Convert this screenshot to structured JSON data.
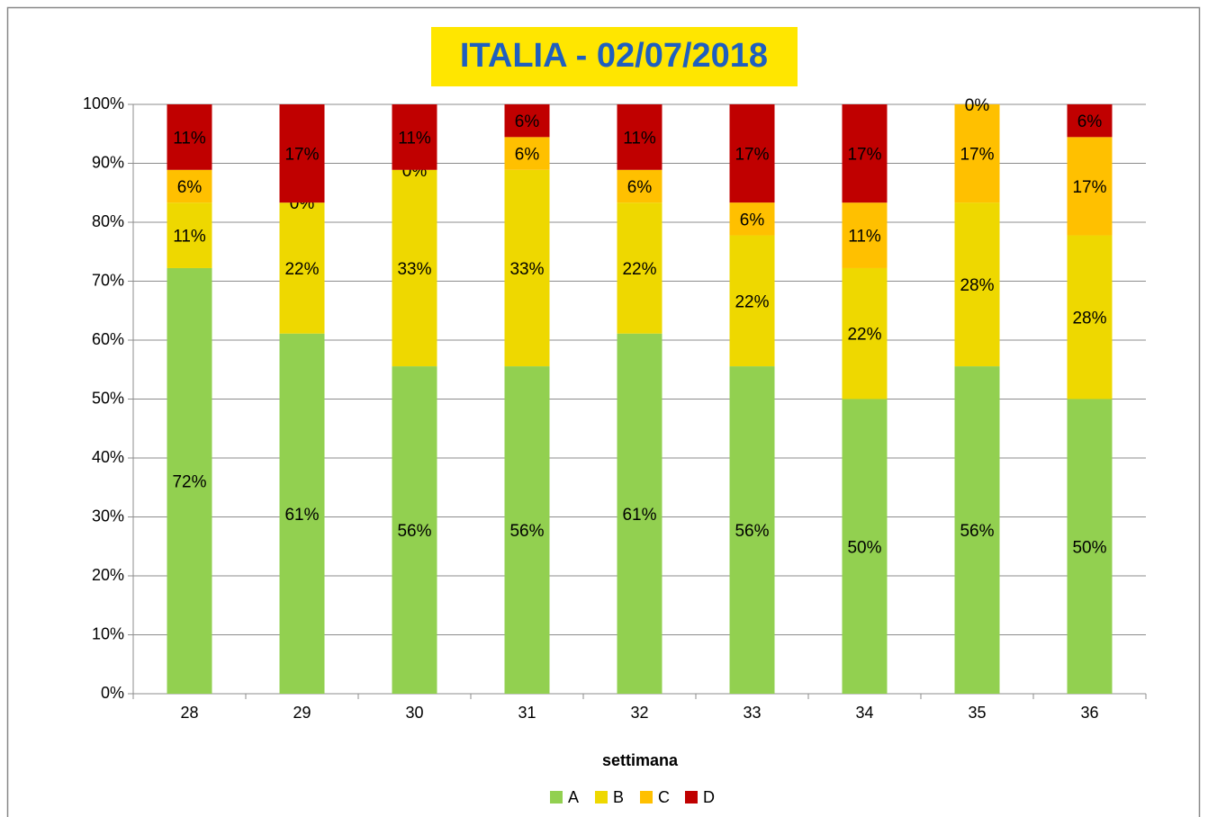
{
  "chart_data": {
    "type": "stacked_bar",
    "title": "ITALIA - 02/07/2018",
    "x_label": "settimana",
    "categories": [
      "28",
      "29",
      "30",
      "31",
      "32",
      "33",
      "34",
      "35",
      "36"
    ],
    "series": [
      {
        "name": "A",
        "color": "#92d050",
        "values": [
          72.22,
          61.11,
          55.56,
          55.56,
          61.11,
          55.56,
          50,
          55.56,
          50
        ],
        "value_labels": [
          "72%",
          "61%",
          "56%",
          "56%",
          "61%",
          "56%",
          "50%",
          "56%",
          "50%"
        ]
      },
      {
        "name": "B",
        "color": "#eed800",
        "values": [
          11.11,
          22.22,
          33.33,
          33.33,
          22.22,
          22.22,
          22.22,
          27.78,
          27.78
        ],
        "value_labels": [
          "11%",
          "22%",
          "33%",
          "33%",
          "22%",
          "22%",
          "22%",
          "28%",
          "28%"
        ]
      },
      {
        "name": "C",
        "color": "#ffc000",
        "values": [
          5.56,
          0,
          0,
          5.56,
          5.56,
          5.56,
          11.11,
          16.67,
          16.67
        ],
        "value_labels": [
          "6%",
          "0%",
          "0%",
          "6%",
          "6%",
          "6%",
          "11%",
          "17%",
          "17%"
        ]
      },
      {
        "name": "D",
        "color": "#c00000",
        "values": [
          11.11,
          16.67,
          11.11,
          5.56,
          11.11,
          16.67,
          16.67,
          0,
          5.56
        ],
        "value_labels": [
          "11%",
          "17%",
          "11%",
          "6%",
          "11%",
          "17%",
          "17%",
          "0%",
          "6%"
        ]
      }
    ],
    "ylim": [
      0,
      100
    ],
    "yticks": [
      {
        "value": 0,
        "label": "0%"
      },
      {
        "value": 10,
        "label": "10%"
      },
      {
        "value": 20,
        "label": "20%"
      },
      {
        "value": 30,
        "label": "30%"
      },
      {
        "value": 40,
        "label": "40%"
      },
      {
        "value": 50,
        "label": "50%"
      },
      {
        "value": 60,
        "label": "60%"
      },
      {
        "value": 70,
        "label": "70%"
      },
      {
        "value": 80,
        "label": "80%"
      },
      {
        "value": 90,
        "label": "90%"
      },
      {
        "value": 100,
        "label": "100%"
      }
    ],
    "grid": true,
    "legend": "bottom"
  }
}
